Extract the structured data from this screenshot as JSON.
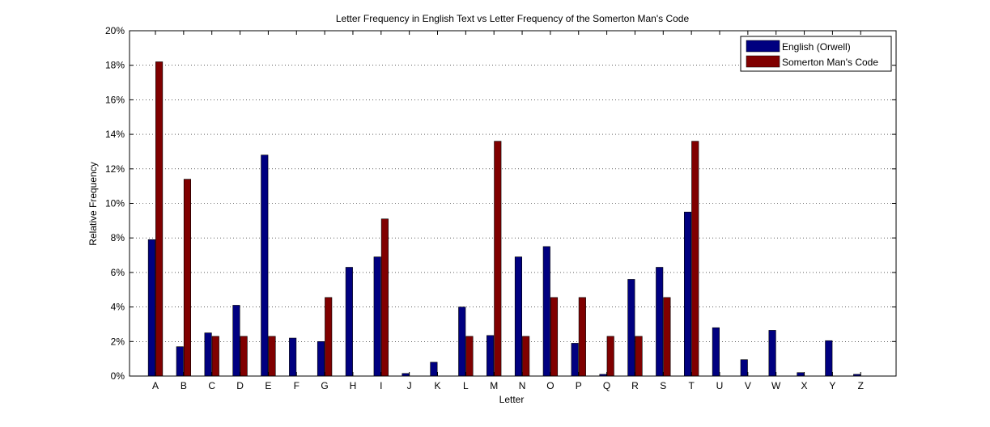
{
  "chart_data": {
    "type": "bar",
    "title": "Letter Frequency in English Text vs Letter Frequency of the Somerton Man's Code",
    "xlabel": "Letter",
    "ylabel": "Relative Frequency",
    "ylim": [
      0,
      20
    ],
    "yticks": [
      0,
      2,
      4,
      6,
      8,
      10,
      12,
      14,
      16,
      18,
      20
    ],
    "ytick_labels": [
      "0%",
      "2%",
      "4%",
      "6%",
      "8%",
      "10%",
      "12%",
      "14%",
      "16%",
      "18%",
      "20%"
    ],
    "grid": "horizontal dotted",
    "legend_position": "top-right",
    "categories": [
      "A",
      "B",
      "C",
      "D",
      "E",
      "F",
      "G",
      "H",
      "I",
      "J",
      "K",
      "L",
      "M",
      "N",
      "O",
      "P",
      "Q",
      "R",
      "S",
      "T",
      "U",
      "V",
      "W",
      "X",
      "Y",
      "Z"
    ],
    "series": [
      {
        "name": "English (Orwell)",
        "color": "#000080",
        "values": [
          7.9,
          1.7,
          2.5,
          4.1,
          12.8,
          2.2,
          2.0,
          6.3,
          6.9,
          0.15,
          0.8,
          4.0,
          2.35,
          6.9,
          7.5,
          1.9,
          0.1,
          5.6,
          6.3,
          9.5,
          2.8,
          0.95,
          2.65,
          0.2,
          2.05,
          0.1
        ]
      },
      {
        "name": "Somerton Man's Code",
        "color": "#800000",
        "values": [
          18.2,
          11.4,
          2.3,
          2.3,
          2.3,
          0,
          4.55,
          0,
          9.1,
          0,
          0,
          2.3,
          13.6,
          2.3,
          4.55,
          4.55,
          2.3,
          2.3,
          4.55,
          13.6,
          0,
          0,
          0,
          0,
          0,
          0
        ]
      }
    ]
  }
}
